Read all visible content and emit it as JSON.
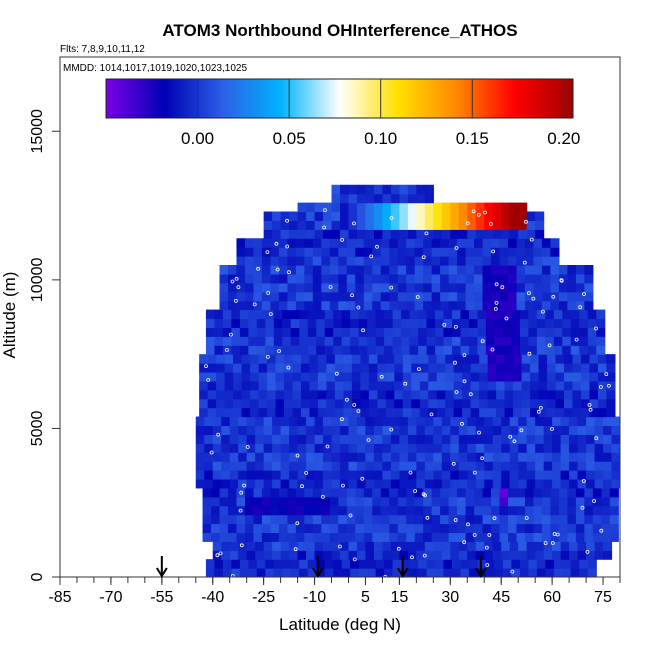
{
  "chart_data": {
    "type": "heatmap",
    "title": "ATOM3 Northbound OHInterference_ATHOS",
    "flights_note": "Flts: 7,8,9,10,11,12",
    "dates_note": "MMDD: 1014,1017,1019,1020,1023,1025",
    "xlabel": "Latitude (deg N)",
    "ylabel": "Altitude (m)",
    "xlim": [
      -85,
      80
    ],
    "ylim": [
      0,
      17500
    ],
    "x_major_ticks": [
      -85,
      -70,
      -55,
      -40,
      -25,
      -10,
      5,
      15,
      30,
      45,
      60,
      75
    ],
    "x_minor_step": 5,
    "y_ticks": [
      0,
      5000,
      10000,
      15000
    ],
    "colorbar": {
      "range": [
        -0.05,
        0.205
      ],
      "ticks": [
        0.0,
        0.05,
        0.1,
        0.15,
        0.2
      ],
      "tick_labels": [
        "0.00",
        "0.05",
        "0.10",
        "0.15",
        "0.20"
      ],
      "colors": [
        "#7a00e6",
        "#0000b4",
        "#2c5fe6",
        "#00b4ff",
        "#ffffff",
        "#ffe000",
        "#ff8800",
        "#ff0000",
        "#a00000"
      ]
    },
    "background_value": 0.0,
    "anomalies": [
      {
        "lat_range": [
          -3,
          52
        ],
        "alt_range": [
          11800,
          12600
        ],
        "value": 0.04,
        "note": "upper-right gradient band toward 0.2"
      },
      {
        "lat_range": [
          40,
          50
        ],
        "alt_range": [
          6500,
          10500
        ],
        "value": -0.025,
        "note": "dark vertical column"
      },
      {
        "lat_range": [
          44,
          48
        ],
        "alt_range": [
          2300,
          3100
        ],
        "value": -0.04,
        "note": "purple patch"
      },
      {
        "lat_range": [
          -30,
          -5
        ],
        "alt_range": [
          2000,
          2600
        ],
        "value": -0.02,
        "note": "dark band"
      }
    ],
    "flight_markers_lat": [
      -55,
      -9,
      16,
      39
    ]
  }
}
